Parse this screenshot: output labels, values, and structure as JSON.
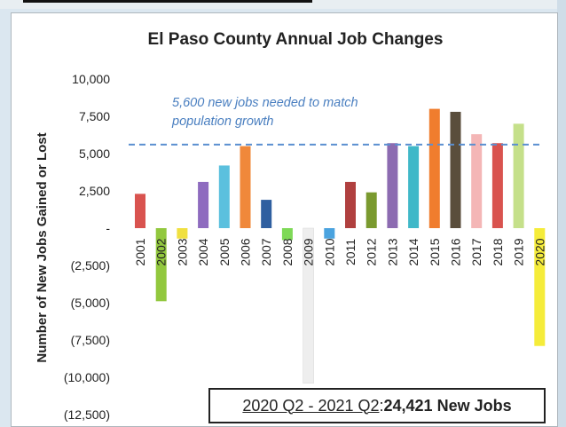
{
  "colors": {
    "background": "#dbe7f0",
    "panel": "#ffffff",
    "target_line": "#5b8fd0",
    "target_text": "#4a7fc0"
  },
  "chart_data": {
    "type": "bar",
    "title": "El Paso County Annual Job Changes",
    "ylabel": "Number of New Jobs Gained or Lost",
    "xlabel": "",
    "ylim": [
      -12500,
      10000
    ],
    "yticks": [
      10000,
      7500,
      5000,
      2500,
      0,
      -2500,
      -5000,
      -7500,
      -10000,
      -12500
    ],
    "ytick_labels": [
      "10,000",
      "7,500",
      "5,000",
      "2,500",
      "-",
      "(2,500)",
      "(5,000)",
      "(7,500)",
      "(10,000)",
      "(12,500)"
    ],
    "grid": false,
    "legend": "none",
    "categories": [
      "2001",
      "2002",
      "2003",
      "2004",
      "2005",
      "2006",
      "2007",
      "2008",
      "2009",
      "2010",
      "2011",
      "2012",
      "2013",
      "2014",
      "2015",
      "2016",
      "2017",
      "2018",
      "2019",
      "2020"
    ],
    "values": [
      2300,
      -4900,
      -700,
      3100,
      4200,
      5500,
      1900,
      -800,
      -10400,
      -700,
      3100,
      2400,
      5700,
      5500,
      8000,
      7800,
      6300,
      5700,
      7000,
      -7900
    ],
    "bar_colors": [
      "#d9534f",
      "#92c83e",
      "#f0e040",
      "#8e6bbf",
      "#5bc0de",
      "#f0883a",
      "#2f5fa0",
      "#7ed957",
      "#eeeeee",
      "#4aa3df",
      "#b0403f",
      "#7a9a2f",
      "#8c6bb1",
      "#3fb8c8",
      "#f07d2e",
      "#5a4e3c",
      "#f4b6b6",
      "#d9534f",
      "#c5e08a",
      "#f5ec3a"
    ],
    "reference_line": {
      "value": 5600,
      "label_line1": "5,600 new jobs needed to match",
      "label_line2": "population growth"
    }
  },
  "callout": {
    "period": "2020 Q2 - 2021 Q2",
    "separator": ": ",
    "total": "24,421 New Jobs"
  }
}
